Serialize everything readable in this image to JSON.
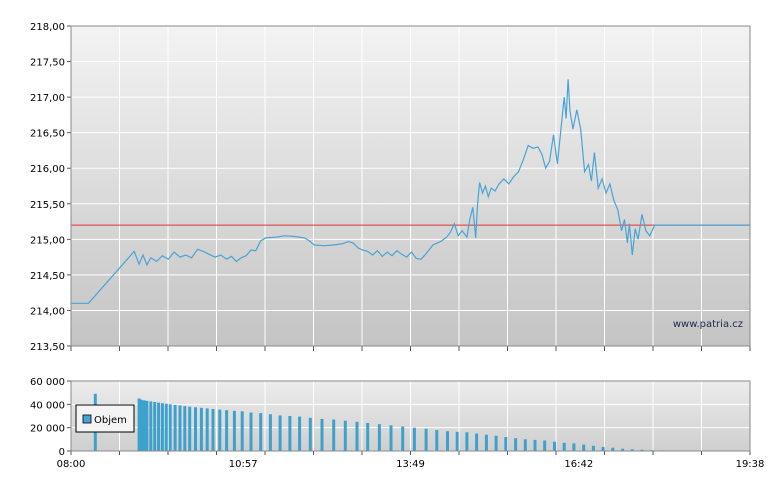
{
  "chart_data": [
    {
      "type": "line",
      "y_ticks": [
        "213,50",
        "214,00",
        "214,50",
        "215,00",
        "215,50",
        "216,00",
        "216,50",
        "217,00",
        "217,50",
        "218,00"
      ],
      "ylim": [
        213.5,
        218.0
      ],
      "x_ticks": [
        "08:00",
        "10:57",
        "13:49",
        "16:42",
        "19:38"
      ],
      "xlim": [
        "08:00",
        "19:38"
      ],
      "reference_line": 215.2,
      "watermark": "www.patria.cz",
      "grid": true,
      "series": [
        {
          "points": [
            [
              "08:00",
              214.1
            ],
            [
              "08:10",
              214.1
            ],
            [
              "08:18",
              214.1
            ],
            [
              "09:05",
              214.83
            ],
            [
              "09:10",
              214.65
            ],
            [
              "09:14",
              214.78
            ],
            [
              "09:18",
              214.64
            ],
            [
              "09:22",
              214.74
            ],
            [
              "09:28",
              214.69
            ],
            [
              "09:34",
              214.77
            ],
            [
              "09:40",
              214.72
            ],
            [
              "09:46",
              214.82
            ],
            [
              "09:52",
              214.75
            ],
            [
              "09:58",
              214.78
            ],
            [
              "10:04",
              214.74
            ],
            [
              "10:10",
              214.86
            ],
            [
              "10:16",
              214.83
            ],
            [
              "10:22",
              214.79
            ],
            [
              "10:28",
              214.75
            ],
            [
              "10:34",
              214.78
            ],
            [
              "10:40",
              214.72
            ],
            [
              "10:45",
              214.76
            ],
            [
              "10:50",
              214.69
            ],
            [
              "10:55",
              214.74
            ],
            [
              "11:00",
              214.77
            ],
            [
              "11:05",
              214.85
            ],
            [
              "11:10",
              214.84
            ],
            [
              "11:15",
              214.98
            ],
            [
              "11:20",
              215.02
            ],
            [
              "11:30",
              215.03
            ],
            [
              "11:40",
              215.05
            ],
            [
              "11:50",
              215.04
            ],
            [
              "12:00",
              215.02
            ],
            [
              "12:05",
              214.98
            ],
            [
              "12:10",
              214.92
            ],
            [
              "12:20",
              214.91
            ],
            [
              "12:30",
              214.92
            ],
            [
              "12:40",
              214.94
            ],
            [
              "12:45",
              214.97
            ],
            [
              "12:50",
              214.95
            ],
            [
              "12:55",
              214.88
            ],
            [
              "13:00",
              214.85
            ],
            [
              "13:05",
              214.83
            ],
            [
              "13:10",
              214.78
            ],
            [
              "13:15",
              214.84
            ],
            [
              "13:20",
              214.76
            ],
            [
              "13:25",
              214.82
            ],
            [
              "13:30",
              214.77
            ],
            [
              "13:35",
              214.84
            ],
            [
              "13:40",
              214.79
            ],
            [
              "13:45",
              214.75
            ],
            [
              "13:50",
              214.82
            ],
            [
              "13:55",
              214.73
            ],
            [
              "14:00",
              214.72
            ],
            [
              "14:05",
              214.8
            ],
            [
              "14:12",
              214.92
            ],
            [
              "14:20",
              214.97
            ],
            [
              "14:26",
              215.03
            ],
            [
              "14:30",
              215.1
            ],
            [
              "14:34",
              215.22
            ],
            [
              "14:38",
              215.05
            ],
            [
              "14:42",
              215.12
            ],
            [
              "14:47",
              215.03
            ],
            [
              "14:50",
              215.28
            ],
            [
              "14:53",
              215.45
            ],
            [
              "14:56",
              215.02
            ],
            [
              "14:58",
              215.5
            ],
            [
              "15:00",
              215.8
            ],
            [
              "15:03",
              215.65
            ],
            [
              "15:06",
              215.75
            ],
            [
              "15:09",
              215.6
            ],
            [
              "15:12",
              215.72
            ],
            [
              "15:16",
              215.68
            ],
            [
              "15:20",
              215.78
            ],
            [
              "15:25",
              215.85
            ],
            [
              "15:30",
              215.78
            ],
            [
              "15:35",
              215.88
            ],
            [
              "15:40",
              215.95
            ],
            [
              "15:45",
              216.12
            ],
            [
              "15:50",
              216.32
            ],
            [
              "15:55",
              216.28
            ],
            [
              "16:00",
              216.3
            ],
            [
              "16:04",
              216.2
            ],
            [
              "16:08",
              216.0
            ],
            [
              "16:12",
              216.1
            ],
            [
              "16:16",
              216.47
            ],
            [
              "16:20",
              216.06
            ],
            [
              "16:24",
              216.6
            ],
            [
              "16:27",
              217.0
            ],
            [
              "16:29",
              216.7
            ],
            [
              "16:31",
              217.25
            ],
            [
              "16:33",
              216.8
            ],
            [
              "16:36",
              216.55
            ],
            [
              "16:40",
              216.82
            ],
            [
              "16:44",
              216.55
            ],
            [
              "16:48",
              215.95
            ],
            [
              "16:52",
              216.05
            ],
            [
              "16:55",
              215.82
            ],
            [
              "16:58",
              216.22
            ],
            [
              "17:02",
              215.72
            ],
            [
              "17:06",
              215.85
            ],
            [
              "17:10",
              215.65
            ],
            [
              "17:14",
              215.78
            ],
            [
              "17:18",
              215.55
            ],
            [
              "17:22",
              215.42
            ],
            [
              "17:26",
              215.12
            ],
            [
              "17:29",
              215.28
            ],
            [
              "17:32",
              214.95
            ],
            [
              "17:34",
              215.22
            ],
            [
              "17:37",
              214.78
            ],
            [
              "17:40",
              215.15
            ],
            [
              "17:43",
              215.0
            ],
            [
              "17:47",
              215.35
            ],
            [
              "17:51",
              215.12
            ],
            [
              "17:55",
              215.05
            ],
            [
              "18:00",
              215.2
            ]
          ]
        }
      ]
    },
    {
      "type": "bar",
      "y_ticks": [
        "0",
        "20 000",
        "40 000",
        "60 000"
      ],
      "ylim": [
        0,
        60000
      ],
      "x_ticks": [
        "08:00",
        "10:57",
        "13:49",
        "16:42",
        "19:38"
      ],
      "xlim": [
        "08:00",
        "19:38"
      ],
      "legend": "Objem",
      "legend_position": "left",
      "grid": true,
      "bars": [
        [
          "08:25",
          49000
        ],
        [
          "09:10",
          45000
        ],
        [
          "09:12",
          44000
        ],
        [
          "09:15",
          43500
        ],
        [
          "09:18",
          43000
        ],
        [
          "09:22",
          42500
        ],
        [
          "09:26",
          42000
        ],
        [
          "09:30",
          41500
        ],
        [
          "09:34",
          41000
        ],
        [
          "09:38",
          40500
        ],
        [
          "09:42",
          40000
        ],
        [
          "09:47",
          39500
        ],
        [
          "09:52",
          39000
        ],
        [
          "09:57",
          38500
        ],
        [
          "10:02",
          38000
        ],
        [
          "10:08",
          37500
        ],
        [
          "10:14",
          37000
        ],
        [
          "10:20",
          36500
        ],
        [
          "10:26",
          36000
        ],
        [
          "10:33",
          35500
        ],
        [
          "10:40",
          35000
        ],
        [
          "10:48",
          34500
        ],
        [
          "10:56",
          34000
        ],
        [
          "11:05",
          33000
        ],
        [
          "11:15",
          32500
        ],
        [
          "11:25",
          31500
        ],
        [
          "11:35",
          30500
        ],
        [
          "11:45",
          30000
        ],
        [
          "11:55",
          29500
        ],
        [
          "12:06",
          28500
        ],
        [
          "12:18",
          27500
        ],
        [
          "12:30",
          27000
        ],
        [
          "12:42",
          26000
        ],
        [
          "12:54",
          25000
        ],
        [
          "13:05",
          24000
        ],
        [
          "13:17",
          23000
        ],
        [
          "13:29",
          22000
        ],
        [
          "13:41",
          21000
        ],
        [
          "13:53",
          20000
        ],
        [
          "14:05",
          19000
        ],
        [
          "14:16",
          18000
        ],
        [
          "14:27",
          17000
        ],
        [
          "14:37",
          16500
        ],
        [
          "14:47",
          16000
        ],
        [
          "14:57",
          15000
        ],
        [
          "15:07",
          14000
        ],
        [
          "15:17",
          13000
        ],
        [
          "15:27",
          12000
        ],
        [
          "15:37",
          11000
        ],
        [
          "15:47",
          10000
        ],
        [
          "15:57",
          9500
        ],
        [
          "16:07",
          9000
        ],
        [
          "16:17",
          8000
        ],
        [
          "16:27",
          7000
        ],
        [
          "16:37",
          6500
        ],
        [
          "16:47",
          5500
        ],
        [
          "16:57",
          4500
        ],
        [
          "17:07",
          3500
        ],
        [
          "17:17",
          2800
        ],
        [
          "17:27",
          2000
        ],
        [
          "17:37",
          1500
        ],
        [
          "17:47",
          1000
        ],
        [
          "17:57",
          700
        ],
        [
          "18:07",
          500
        ],
        [
          "18:17",
          300
        ],
        [
          "18:27",
          200
        ],
        [
          "18:37",
          150
        ],
        [
          "18:47",
          100
        ],
        [
          "18:57",
          100
        ],
        [
          "19:07",
          100
        ],
        [
          "19:17",
          100
        ],
        [
          "19:27",
          100
        ]
      ]
    }
  ]
}
